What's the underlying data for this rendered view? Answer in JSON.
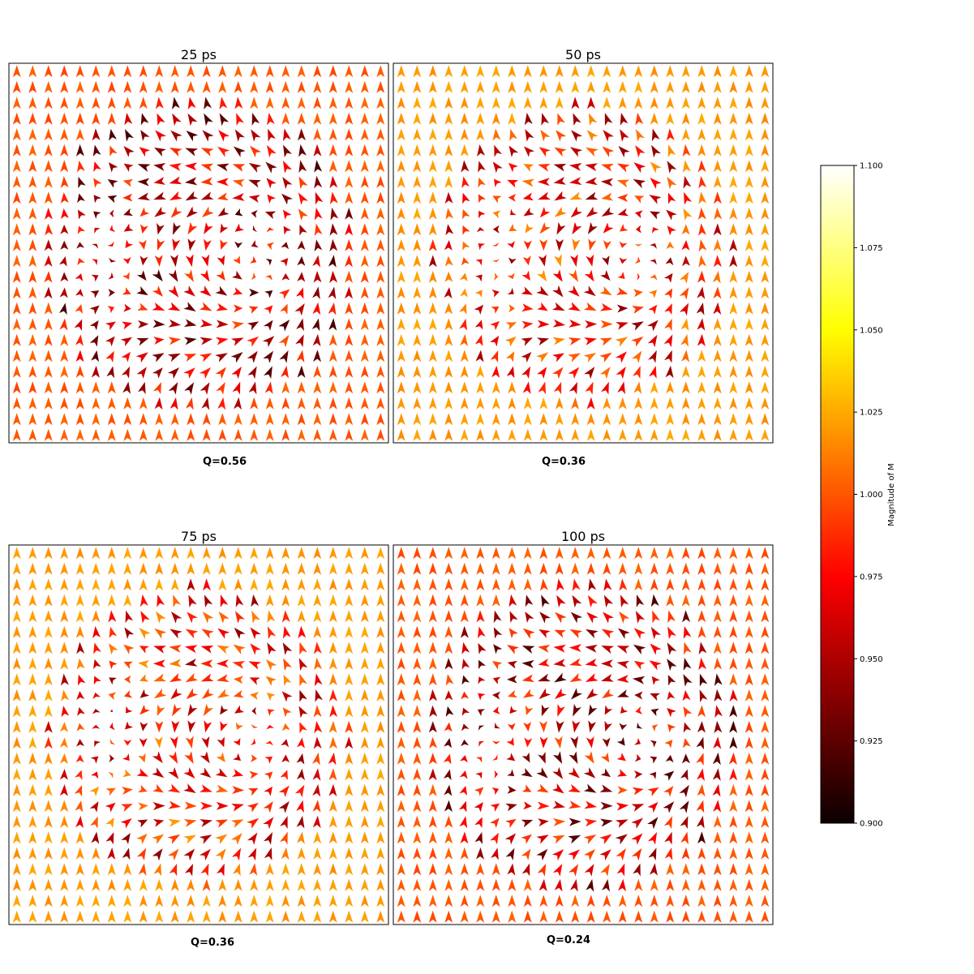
{
  "chart_data": {
    "type": "quiver",
    "panels": [
      {
        "title": "25 ps",
        "annotation": "Q=0.56",
        "rows": 24,
        "cols": 24,
        "core_radius_fraction": 0.42
      },
      {
        "title": "50 ps",
        "annotation": "Q=0.36",
        "rows": 24,
        "cols": 24,
        "core_radius_fraction": 0.4
      },
      {
        "title": "75 ps",
        "annotation": "Q=0.36",
        "rows": 24,
        "cols": 24,
        "core_radius_fraction": 0.4
      },
      {
        "title": "100 ps",
        "annotation": "Q=0.24",
        "rows": 24,
        "cols": 24,
        "core_radius_fraction": 0.42
      }
    ],
    "colorbar": {
      "label": "Magnitude of M",
      "colormap": "hot",
      "min": 0.9,
      "max": 1.1,
      "ticks": [
        "0.900",
        "0.925",
        "0.950",
        "0.975",
        "1.000",
        "1.025",
        "1.050",
        "1.075",
        "1.100"
      ]
    }
  }
}
